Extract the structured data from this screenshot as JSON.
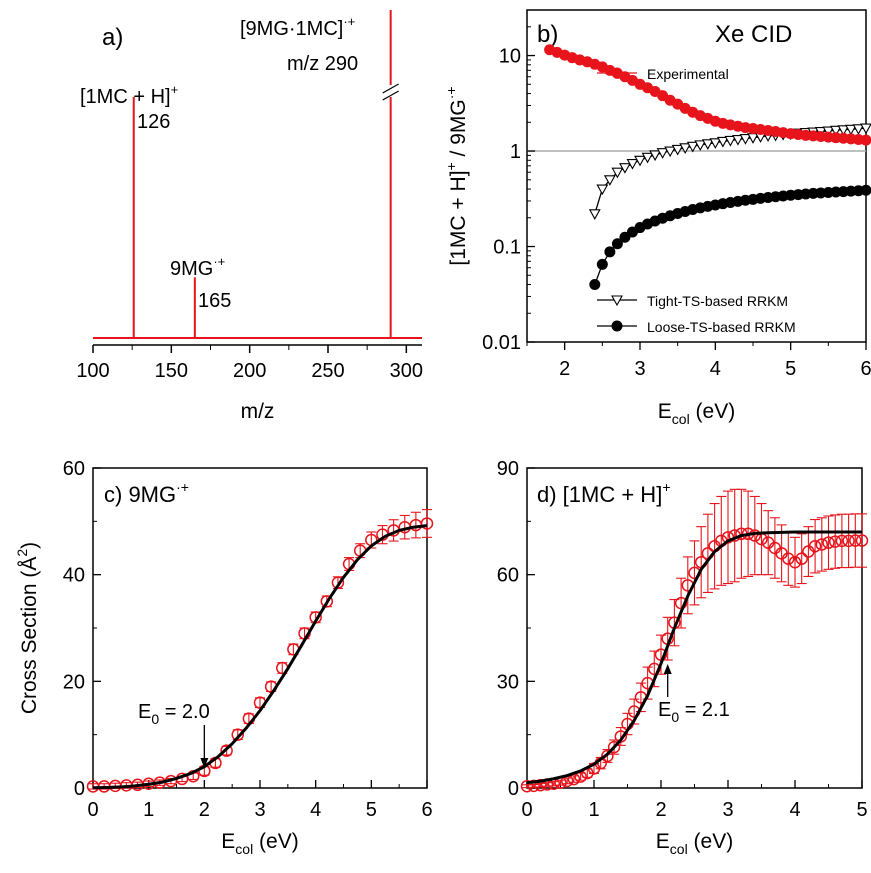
{
  "colors": {
    "red": "#e8141b",
    "black": "#000000",
    "gray": "#aaaaaa"
  },
  "chart_data": [
    {
      "panel": "a",
      "type": "bar",
      "label": "a)",
      "xlabel": "m/z",
      "ylabel": "",
      "xlim": [
        100,
        310
      ],
      "xticks": [
        100,
        150,
        200,
        250,
        300
      ],
      "peaks": [
        {
          "mz": 126,
          "height": 0.735,
          "ion_main": "[1MC + H]",
          "ion_sup": "+",
          "mz_label": "126"
        },
        {
          "mz": 165,
          "height": 0.185,
          "ion_main": "9MG",
          "ion_sup": "·+",
          "mz_label": "165"
        },
        {
          "mz": 290,
          "height": 1.0,
          "ion_main": "[9MG·1MC]",
          "ion_sup": "·+",
          "mz_label": "m/z 290",
          "axis_break": true
        }
      ]
    },
    {
      "panel": "b",
      "type": "line",
      "label": "b)",
      "title": "Xe CID",
      "xlabel_main": "E",
      "xlabel_sub": "col",
      "xlabel_unit": " (eV)",
      "ylabel": "[1MC + H]⁺ / 9MG·⁺",
      "xlim": [
        1.5,
        6
      ],
      "ylim": [
        0.01,
        30
      ],
      "yscale": "log",
      "xticks": [
        2,
        3,
        4,
        5,
        6
      ],
      "yticks": [
        0.01,
        0.1,
        1,
        10
      ],
      "ytick_labels": [
        "0.01",
        "0.1",
        "1",
        "10"
      ],
      "reference_line": 1,
      "series": [
        {
          "name": "Experimental",
          "x": [
            1.8,
            1.9,
            2.0,
            2.1,
            2.2,
            2.3,
            2.4,
            2.5,
            2.6,
            2.7,
            2.8,
            2.9,
            3.0,
            3.1,
            3.2,
            3.3,
            3.4,
            3.5,
            3.6,
            3.7,
            3.8,
            3.9,
            4.0,
            4.1,
            4.2,
            4.3,
            4.4,
            4.5,
            4.6,
            4.7,
            4.8,
            4.9,
            5.0,
            5.1,
            5.2,
            5.3,
            5.4,
            5.5,
            5.6,
            5.7,
            5.8,
            5.9,
            6.0
          ],
          "y": [
            11.5,
            10.8,
            10.1,
            9.5,
            9.0,
            8.6,
            8.1,
            7.6,
            7.0,
            6.5,
            6.0,
            5.5,
            5.0,
            4.6,
            4.2,
            3.8,
            3.4,
            3.1,
            2.8,
            2.55,
            2.35,
            2.2,
            2.05,
            1.95,
            1.88,
            1.82,
            1.76,
            1.72,
            1.68,
            1.64,
            1.6,
            1.56,
            1.52,
            1.49,
            1.46,
            1.44,
            1.42,
            1.4,
            1.38,
            1.36,
            1.34,
            1.32,
            1.3
          ]
        },
        {
          "name": "Tight-TS-based RRKM",
          "x": [
            2.4,
            2.5,
            2.6,
            2.7,
            2.8,
            2.9,
            3.0,
            3.1,
            3.2,
            3.3,
            3.4,
            3.5,
            3.6,
            3.7,
            3.8,
            3.9,
            4.0,
            4.1,
            4.2,
            4.3,
            4.4,
            4.5,
            4.6,
            4.7,
            4.8,
            4.9,
            5.0,
            5.1,
            5.2,
            5.3,
            5.4,
            5.5,
            5.6,
            5.7,
            5.8,
            5.9,
            6.0
          ],
          "y": [
            0.22,
            0.4,
            0.5,
            0.6,
            0.67,
            0.74,
            0.8,
            0.86,
            0.91,
            0.96,
            1.0,
            1.04,
            1.08,
            1.12,
            1.16,
            1.19,
            1.22,
            1.26,
            1.29,
            1.32,
            1.35,
            1.38,
            1.41,
            1.44,
            1.46,
            1.49,
            1.51,
            1.54,
            1.56,
            1.58,
            1.6,
            1.62,
            1.65,
            1.67,
            1.69,
            1.71,
            1.74
          ]
        },
        {
          "name": "Loose-TS-based RRKM",
          "x": [
            2.4,
            2.5,
            2.6,
            2.7,
            2.8,
            2.9,
            3.0,
            3.1,
            3.2,
            3.3,
            3.4,
            3.5,
            3.6,
            3.7,
            3.8,
            3.9,
            4.0,
            4.1,
            4.2,
            4.3,
            4.4,
            4.5,
            4.6,
            4.7,
            4.8,
            4.9,
            5.0,
            5.1,
            5.2,
            5.3,
            5.4,
            5.5,
            5.6,
            5.7,
            5.8,
            5.9,
            6.0
          ],
          "y": [
            0.04,
            0.065,
            0.088,
            0.107,
            0.125,
            0.142,
            0.158,
            0.172,
            0.185,
            0.198,
            0.21,
            0.222,
            0.233,
            0.244,
            0.254,
            0.263,
            0.272,
            0.281,
            0.289,
            0.297,
            0.305,
            0.312,
            0.319,
            0.326,
            0.332,
            0.338,
            0.344,
            0.35,
            0.355,
            0.36,
            0.364,
            0.368,
            0.372,
            0.376,
            0.38,
            0.384,
            0.388
          ]
        }
      ]
    },
    {
      "panel": "c",
      "type": "scatter",
      "label": "c) 9MG",
      "label_sup": "·+",
      "xlabel_main": "E",
      "xlabel_sub": "col",
      "xlabel_unit": " (eV)",
      "ylabel": "Cross Section (Å²)",
      "xlim": [
        0,
        6
      ],
      "ylim": [
        0,
        60
      ],
      "xticks": [
        0,
        1,
        2,
        3,
        4,
        5,
        6
      ],
      "yticks": [
        0,
        20,
        40,
        60
      ],
      "annotation": {
        "text": "E",
        "sub": "0",
        "rest": " = 2.0",
        "x": 2.0,
        "y": 3
      },
      "series": [
        {
          "name": "",
          "kind": "data",
          "x": [
            0.0,
            0.2,
            0.4,
            0.6,
            0.8,
            1.0,
            1.2,
            1.4,
            1.6,
            1.8,
            2.0,
            2.2,
            2.4,
            2.6,
            2.8,
            3.0,
            3.2,
            3.4,
            3.6,
            3.8,
            4.0,
            4.2,
            4.4,
            4.6,
            4.8,
            5.0,
            5.2,
            5.4,
            5.6,
            5.8,
            6.0
          ],
          "y": [
            0.3,
            0.3,
            0.4,
            0.5,
            0.6,
            0.8,
            1.0,
            1.3,
            1.7,
            2.2,
            3.2,
            4.7,
            7.0,
            10,
            13,
            16,
            19,
            22.5,
            26,
            29,
            32,
            35,
            38.5,
            42,
            44.5,
            46.5,
            47.5,
            48.3,
            48.9,
            49.3,
            49.6
          ],
          "err": [
            0.5,
            0.5,
            0.5,
            0.5,
            0.5,
            0.5,
            0.5,
            0.5,
            0.5,
            0.6,
            0.8,
            0.8,
            0.8,
            0.9,
            0.9,
            0.9,
            0.9,
            1.0,
            1.0,
            1.0,
            1.0,
            1.0,
            1.1,
            1.2,
            1.3,
            1.5,
            1.7,
            2.0,
            2.2,
            2.4,
            2.6
          ]
        },
        {
          "name": "",
          "kind": "fit",
          "x": [
            0.0,
            0.25,
            0.5,
            0.75,
            1.0,
            1.25,
            1.5,
            1.75,
            2.0,
            2.25,
            2.5,
            2.75,
            3.0,
            3.25,
            3.5,
            3.75,
            4.0,
            4.25,
            4.5,
            4.75,
            5.0,
            5.25,
            5.5,
            5.75,
            6.0
          ],
          "y": [
            0.05,
            0.1,
            0.2,
            0.4,
            0.7,
            1.1,
            1.8,
            2.7,
            4.0,
            5.9,
            8.3,
            11.2,
            14.5,
            18.3,
            22.4,
            26.8,
            31.3,
            35.6,
            39.5,
            42.8,
            45.4,
            47.2,
            48.3,
            48.9,
            49.2
          ]
        }
      ]
    },
    {
      "panel": "d",
      "type": "scatter",
      "label": "d) [1MC + H]",
      "label_sup": "+",
      "xlabel_main": "E",
      "xlabel_sub": "col",
      "xlabel_unit": " (eV)",
      "ylabel": "",
      "xlim": [
        0,
        5
      ],
      "ylim": [
        0,
        90
      ],
      "xticks": [
        0,
        1,
        2,
        3,
        4,
        5
      ],
      "yticks": [
        0,
        30,
        60,
        90
      ],
      "annotation": {
        "text": "E",
        "sub": "0",
        "rest": " = 2.1",
        "x": 2.1,
        "y": 36
      },
      "series": [
        {
          "name": "",
          "kind": "data",
          "x": [
            0.0,
            0.1,
            0.2,
            0.3,
            0.4,
            0.5,
            0.6,
            0.7,
            0.8,
            0.9,
            1.0,
            1.1,
            1.2,
            1.3,
            1.4,
            1.5,
            1.6,
            1.7,
            1.8,
            1.9,
            2.0,
            2.1,
            2.2,
            2.3,
            2.4,
            2.5,
            2.6,
            2.7,
            2.8,
            2.9,
            3.0,
            3.1,
            3.2,
            3.3,
            3.4,
            3.5,
            3.6,
            3.7,
            3.8,
            3.9,
            4.0,
            4.1,
            4.2,
            4.3,
            4.4,
            4.5,
            4.6,
            4.7,
            4.8,
            4.9,
            5.0
          ],
          "y": [
            0.5,
            0.6,
            0.8,
            1.0,
            1.2,
            1.5,
            2.0,
            2.5,
            3.2,
            4.2,
            5.5,
            7.0,
            9.0,
            11.5,
            14.5,
            18,
            21.5,
            25.5,
            29.5,
            33.5,
            37.5,
            42,
            46.5,
            52,
            57,
            60.5,
            63.5,
            66,
            68,
            69.5,
            70.5,
            71,
            71.5,
            71.5,
            71,
            70,
            69,
            67.5,
            66,
            64.5,
            63.5,
            64.5,
            66.5,
            68,
            68.5,
            69,
            69.3,
            69.5,
            69.5,
            69.6,
            69.6
          ],
          "err": [
            0.4,
            0.4,
            0.5,
            0.5,
            0.6,
            0.7,
            0.8,
            0.9,
            1.0,
            1.2,
            1.4,
            1.6,
            1.8,
            2.0,
            2.5,
            3,
            3.5,
            4,
            4.5,
            5,
            5.5,
            6,
            6.5,
            7,
            8,
            9,
            10,
            11,
            12,
            12.5,
            13,
            13,
            12.5,
            12,
            11,
            10,
            9,
            8.5,
            8,
            7.5,
            7,
            7,
            7,
            7.5,
            7.5,
            7.5,
            7.5,
            7.5,
            7.5,
            7.5,
            7.5
          ]
        },
        {
          "name": "",
          "kind": "fit",
          "x": [
            0.0,
            0.2,
            0.4,
            0.6,
            0.8,
            1.0,
            1.2,
            1.4,
            1.6,
            1.8,
            2.0,
            2.2,
            2.4,
            2.6,
            2.8,
            3.0,
            3.2,
            3.4,
            3.6,
            3.8,
            4.0,
            4.2,
            4.4,
            4.6,
            4.8,
            5.0
          ],
          "y": [
            1.5,
            1.9,
            2.6,
            3.5,
            4.8,
            6.7,
            9.5,
            13.5,
            19,
            26,
            35,
            45,
            54,
            61.5,
            66.5,
            69.5,
            71,
            71.6,
            71.8,
            71.9,
            72,
            72,
            72,
            72,
            72,
            72
          ]
        }
      ]
    }
  ]
}
